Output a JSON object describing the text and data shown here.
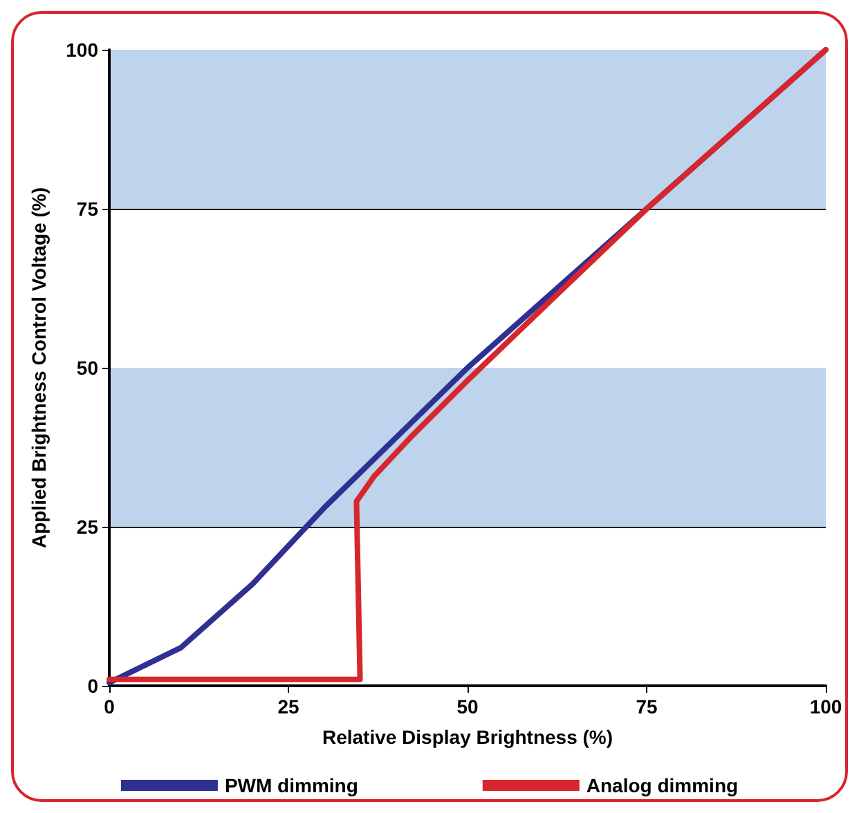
{
  "chart_data": {
    "type": "line",
    "xlabel": "Relative Display Brightness (%)",
    "ylabel": "Applied Brightness Control Voltage (%)",
    "xlim": [
      0,
      100
    ],
    "xticks": [
      0,
      25,
      50,
      75,
      100
    ],
    "ylim": [
      0,
      100
    ],
    "yticks": [
      0,
      25,
      50,
      75,
      100
    ],
    "grid": "y",
    "legend": "bottom",
    "line_style": "solid",
    "marker": "none",
    "bands": [
      {
        "axis": "y",
        "from": 25,
        "to": 50,
        "color": "#bed3ec"
      },
      {
        "axis": "y",
        "from": 75,
        "to": 100,
        "color": "#bed3ec"
      }
    ],
    "series": [
      {
        "name": "PWM dimming",
        "color": "#2e3192",
        "x": [
          0,
          10,
          20,
          30,
          50,
          75,
          100
        ],
        "values": [
          0.5,
          6,
          16,
          28,
          50,
          75,
          100
        ]
      },
      {
        "name": "Analog dimming",
        "color": "#d7262e",
        "x": [
          0,
          35,
          34.5,
          37,
          42,
          50,
          62,
          75,
          100
        ],
        "values": [
          1,
          1,
          29,
          33,
          39,
          48,
          61,
          75,
          100
        ]
      }
    ]
  }
}
